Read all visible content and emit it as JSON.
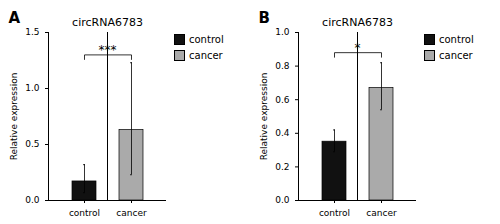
{
  "chart_data": [
    {
      "type": "bar",
      "panel_label": "A",
      "title": "circRNA6783",
      "categories": [
        "control",
        "cancer"
      ],
      "values": [
        0.17,
        0.63
      ],
      "errors_low": [
        0.1,
        0.4
      ],
      "errors_high": [
        0.15,
        0.6
      ],
      "colors": [
        "#111111",
        "#aaaaaa"
      ],
      "ylim": [
        0,
        1.5
      ],
      "yticks": [
        {
          "value": 0,
          "label": "0.0"
        },
        0.5,
        {
          "value": 1,
          "label": "1.0"
        },
        1.5
      ],
      "ylabel": "Relative expression",
      "annotations": [
        {
          "text": "***",
          "y": 1.3,
          "x": [
            "control",
            "cancer"
          ]
        }
      ],
      "legend": "upper right",
      "legend_entries": [
        {
          "name": "control",
          "color": "#111111"
        },
        {
          "name": "cancer",
          "color": "#aaaaaa"
        }
      ],
      "grid": false
    },
    {
      "type": "bar",
      "panel_label": "B",
      "title": "circRNA6783",
      "categories": [
        "control",
        "cancer"
      ],
      "values": [
        0.35,
        0.67
      ],
      "errors_low": [
        0.06,
        0.13
      ],
      "errors_high": [
        0.07,
        0.15
      ],
      "colors": [
        "#111111",
        "#aaaaaa"
      ],
      "ylim": [
        0,
        1.0
      ],
      "yticks": [
        {
          "value": 0,
          "label": "0.0"
        },
        0.2,
        0.4,
        0.6,
        0.8,
        {
          "value": 1,
          "label": "1.0"
        }
      ],
      "ylabel": "Relative expression",
      "annotations": [
        {
          "text": "*",
          "y": 0.88,
          "x": [
            "control",
            "cancer"
          ]
        }
      ],
      "legend": "upper right",
      "legend_entries": [
        {
          "name": "control",
          "color": "#111111"
        },
        {
          "name": "cancer",
          "color": "#aaaaaa"
        }
      ],
      "grid": false
    }
  ]
}
